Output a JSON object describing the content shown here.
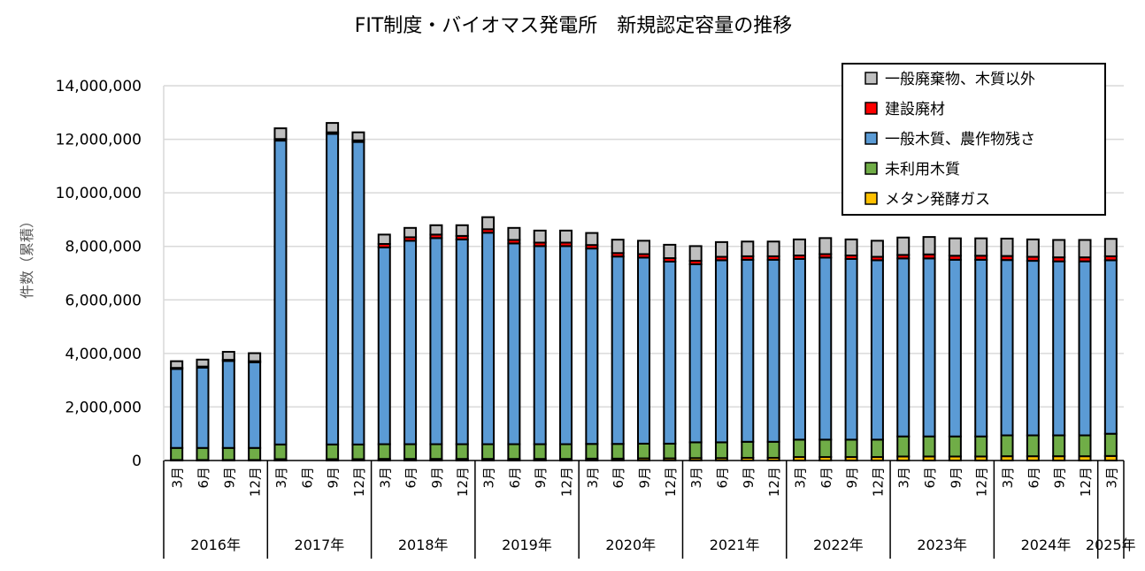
{
  "chart_data": {
    "type": "bar",
    "stacked": true,
    "title": "FIT制度・バイオマス発電所　新規認定容量の推移",
    "ylabel": "件数（累積）",
    "ylim": [
      0,
      14000000
    ],
    "yticks": [
      0,
      2000000,
      4000000,
      6000000,
      8000000,
      10000000,
      12000000,
      14000000
    ],
    "ytick_labels": [
      "0",
      "2,000,000",
      "4,000,000",
      "6,000,000",
      "8,000,000",
      "10,000,000",
      "12,000,000",
      "14,000,000"
    ],
    "grid": true,
    "legend_position": "top-right",
    "categories": [
      "3月",
      "6月",
      "9月",
      "12月",
      "3月",
      "6月",
      "9月",
      "12月",
      "3月",
      "6月",
      "9月",
      "12月",
      "3月",
      "6月",
      "9月",
      "12月",
      "3月",
      "6月",
      "9月",
      "12月",
      "3月",
      "6月",
      "9月",
      "12月",
      "3月",
      "6月",
      "9月",
      "12月",
      "3月",
      "6月",
      "9月",
      "12月",
      "3月",
      "6月",
      "9月",
      "12月",
      "3月"
    ],
    "year_groups": [
      {
        "label": "2016年",
        "count": 4
      },
      {
        "label": "2017年",
        "count": 4
      },
      {
        "label": "2018年",
        "count": 4
      },
      {
        "label": "2019年",
        "count": 4
      },
      {
        "label": "2020年",
        "count": 4
      },
      {
        "label": "2021年",
        "count": 4
      },
      {
        "label": "2022年",
        "count": 4
      },
      {
        "label": "2023年",
        "count": 4
      },
      {
        "label": "2024年",
        "count": 4
      },
      {
        "label": "2025年",
        "count": 1
      }
    ],
    "series": [
      {
        "name": "メタン発酵ガス",
        "color": "#FFC000",
        "values": [
          20000,
          20000,
          20000,
          20000,
          50000,
          null,
          50000,
          50000,
          60000,
          60000,
          60000,
          60000,
          60000,
          60000,
          60000,
          60000,
          70000,
          70000,
          80000,
          80000,
          90000,
          90000,
          100000,
          100000,
          130000,
          130000,
          130000,
          130000,
          150000,
          150000,
          150000,
          150000,
          160000,
          160000,
          160000,
          160000,
          170000
        ]
      },
      {
        "name": "未利用木質",
        "color": "#70AD47",
        "values": [
          450000,
          450000,
          450000,
          450000,
          550000,
          null,
          550000,
          550000,
          550000,
          550000,
          550000,
          550000,
          550000,
          550000,
          550000,
          550000,
          550000,
          550000,
          550000,
          550000,
          590000,
          590000,
          600000,
          600000,
          650000,
          650000,
          650000,
          650000,
          750000,
          750000,
          750000,
          750000,
          780000,
          780000,
          780000,
          780000,
          830000
        ]
      },
      {
        "name": "一般木質、農作物残さ",
        "color": "#5B9BD5",
        "values": [
          2950000,
          3000000,
          3250000,
          3200000,
          11350000,
          null,
          11600000,
          11300000,
          7350000,
          7600000,
          7700000,
          7650000,
          7900000,
          7500000,
          7400000,
          7400000,
          7300000,
          7000000,
          6950000,
          6800000,
          6650000,
          6800000,
          6800000,
          6800000,
          6750000,
          6800000,
          6750000,
          6700000,
          6650000,
          6650000,
          6600000,
          6600000,
          6550000,
          6520000,
          6500000,
          6500000,
          6480000
        ]
      },
      {
        "name": "建設廃材",
        "color": "#FF0000",
        "values": [
          40000,
          40000,
          40000,
          40000,
          60000,
          null,
          60000,
          60000,
          130000,
          130000,
          130000,
          130000,
          130000,
          130000,
          130000,
          130000,
          130000,
          130000,
          130000,
          130000,
          130000,
          130000,
          130000,
          130000,
          130000,
          130000,
          130000,
          130000,
          130000,
          150000,
          150000,
          150000,
          150000,
          150000,
          150000,
          150000,
          150000
        ]
      },
      {
        "name": "一般廃棄物、木質以外",
        "color": "#BFBFBF",
        "values": [
          250000,
          260000,
          300000,
          300000,
          400000,
          null,
          350000,
          300000,
          350000,
          350000,
          350000,
          400000,
          450000,
          450000,
          450000,
          450000,
          450000,
          500000,
          500000,
          500000,
          550000,
          550000,
          550000,
          550000,
          600000,
          600000,
          600000,
          600000,
          650000,
          650000,
          650000,
          650000,
          650000,
          650000,
          650000,
          650000,
          650000
        ]
      }
    ]
  }
}
